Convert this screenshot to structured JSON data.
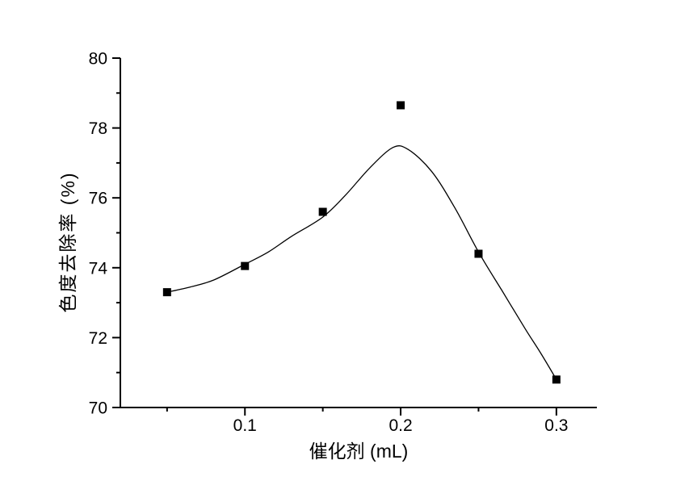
{
  "figure": {
    "background": "#ffffff",
    "axis_color": "#000000",
    "marker_color": "#000000",
    "curve_color": "#000000"
  },
  "chart_data": {
    "type": "scatter",
    "title": "",
    "xlabel": "催化剂 (mL)",
    "ylabel": "色度去除率 (%)",
    "xlim": [
      0.02,
      0.326
    ],
    "ylim": [
      70,
      80
    ],
    "grid": false,
    "legend": "none",
    "x_major_ticks": [
      {
        "value": 0.1,
        "label": "0.1"
      },
      {
        "value": 0.2,
        "label": "0.2"
      },
      {
        "value": 0.3,
        "label": "0.3"
      }
    ],
    "x_minor_ticks": [
      0.05,
      0.15,
      0.25
    ],
    "y_major_ticks": [
      {
        "value": 70,
        "label": "70"
      },
      {
        "value": 72,
        "label": "72"
      },
      {
        "value": 74,
        "label": "74"
      },
      {
        "value": 76,
        "label": "76"
      },
      {
        "value": 78,
        "label": "78"
      },
      {
        "value": 80,
        "label": "80"
      }
    ],
    "y_minor_ticks": [
      71,
      73,
      75,
      77,
      79
    ],
    "series": [
      {
        "name": "色度去除率",
        "marker": "filled-square",
        "marker_size": 10,
        "points": [
          [
            0.05,
            73.3
          ],
          [
            0.1,
            74.05
          ],
          [
            0.15,
            75.6
          ],
          [
            0.2,
            78.65
          ],
          [
            0.25,
            74.4
          ],
          [
            0.3,
            70.8
          ]
        ]
      }
    ],
    "fit_curve": {
      "peak": [
        0.195,
        77.45
      ],
      "samples": [
        [
          0.05,
          73.3
        ],
        [
          0.065,
          73.45
        ],
        [
          0.08,
          73.65
        ],
        [
          0.1,
          74.1
        ],
        [
          0.115,
          74.45
        ],
        [
          0.13,
          74.9
        ],
        [
          0.15,
          75.45
        ],
        [
          0.165,
          76.1
        ],
        [
          0.18,
          76.85
        ],
        [
          0.195,
          77.44
        ],
        [
          0.205,
          77.38
        ],
        [
          0.22,
          76.75
        ],
        [
          0.235,
          75.7
        ],
        [
          0.25,
          74.45
        ],
        [
          0.265,
          73.35
        ],
        [
          0.28,
          72.25
        ],
        [
          0.29,
          71.55
        ],
        [
          0.3,
          70.8
        ]
      ]
    }
  }
}
